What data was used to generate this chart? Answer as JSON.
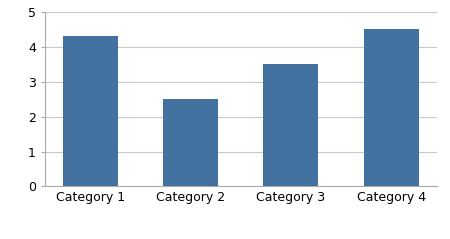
{
  "categories": [
    "Category 1",
    "Category 2",
    "Category 3",
    "Category 4"
  ],
  "values": [
    4.3,
    2.5,
    3.5,
    4.5
  ],
  "bar_color": "#4472a0",
  "ylim": [
    0,
    5
  ],
  "yticks": [
    0,
    1,
    2,
    3,
    4,
    5
  ],
  "background_color": "#ffffff",
  "grid_color": "#c8c8c8",
  "bar_width": 0.55,
  "tick_fontsize": 9,
  "label_fontsize": 9,
  "figsize": [
    4.5,
    2.39
  ],
  "dpi": 100
}
